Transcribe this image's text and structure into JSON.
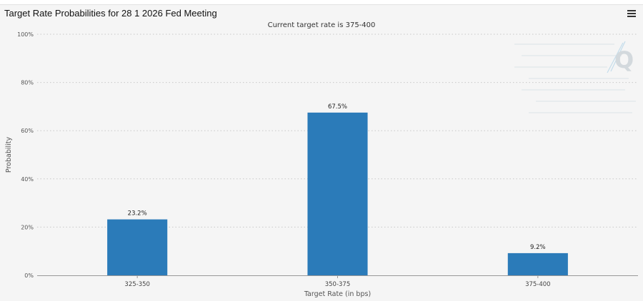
{
  "header": {
    "title": "Target Rate Probabilities for 28 1 2026 Fed Meeting",
    "subtitle": "Current target rate is 375-400",
    "menu_icon": "hamburger-menu-icon",
    "watermark_text": "Q"
  },
  "colors": {
    "bar": "#2b7bb9",
    "grid": "#c8c8c8",
    "axis": "#999999",
    "background": "#f5f5f5"
  },
  "chart_data": {
    "type": "bar",
    "title": "Target Rate Probabilities for 28 1 2026 Fed Meeting",
    "subtitle": "Current target rate is 375-400",
    "xlabel": "Target Rate (in bps)",
    "ylabel": "Probability",
    "categories": [
      "325-350",
      "350-375",
      "375-400"
    ],
    "values": [
      23.2,
      67.5,
      9.2
    ],
    "data_labels": [
      "23.2%",
      "67.5%",
      "9.2%"
    ],
    "ylim": [
      0,
      100
    ],
    "yticks": [
      0,
      20,
      40,
      60,
      80,
      100
    ],
    "ytick_labels": [
      "0%",
      "20%",
      "40%",
      "60%",
      "80%",
      "100%"
    ],
    "grid": true,
    "legend": "none"
  }
}
